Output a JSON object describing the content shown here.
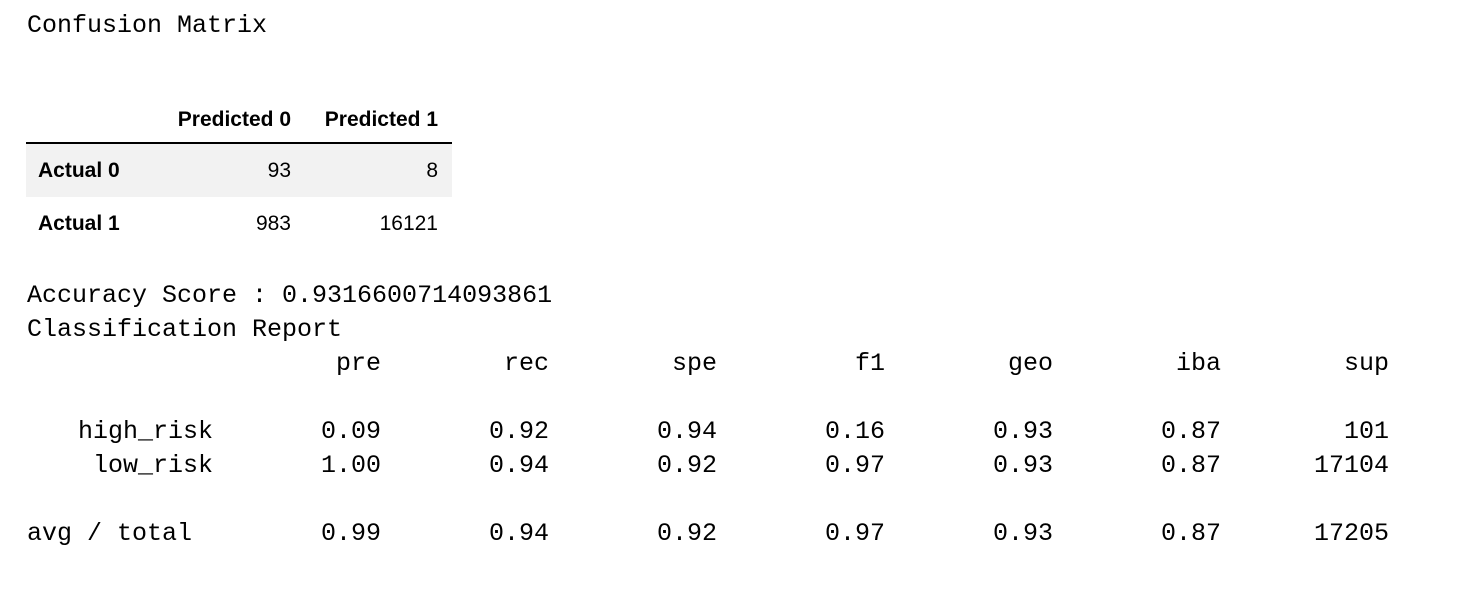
{
  "confusion_matrix": {
    "title": "Confusion Matrix",
    "columns": [
      "Predicted 0",
      "Predicted 1"
    ],
    "rows": [
      {
        "label": "Actual 0",
        "values": [
          "93",
          "8"
        ]
      },
      {
        "label": "Actual 1",
        "values": [
          "983",
          "16121"
        ]
      }
    ]
  },
  "accuracy_line": "Accuracy Score : 0.9316600714093861",
  "report": {
    "title": "Classification Report",
    "columns": [
      "pre",
      "rec",
      "spe",
      "f1",
      "geo",
      "iba",
      "sup"
    ],
    "rows": [
      {
        "label": "high_risk",
        "values": [
          "0.09",
          "0.92",
          "0.94",
          "0.16",
          "0.93",
          "0.87",
          "101"
        ]
      },
      {
        "label": "low_risk",
        "values": [
          "1.00",
          "0.94",
          "0.92",
          "0.97",
          "0.93",
          "0.87",
          "17104"
        ]
      }
    ],
    "total": {
      "label": "avg / total",
      "values": [
        "0.99",
        "0.94",
        "0.92",
        "0.97",
        "0.93",
        "0.87",
        "17205"
      ]
    }
  }
}
